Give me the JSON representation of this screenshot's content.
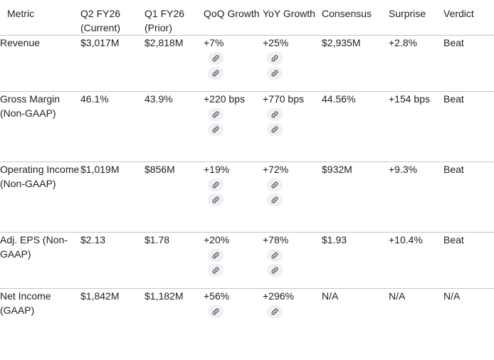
{
  "columns": [
    {
      "key": "metric",
      "label": "Metric"
    },
    {
      "key": "current",
      "label": "Q2 FY26 (Current)"
    },
    {
      "key": "prior",
      "label": "Q1 FY26 (Prior)"
    },
    {
      "key": "qoq",
      "label": "QoQ Growth"
    },
    {
      "key": "yoy",
      "label": "YoY Growth"
    },
    {
      "key": "consensus",
      "label": "Consensus"
    },
    {
      "key": "surprise",
      "label": "Surprise"
    },
    {
      "key": "verdict",
      "label": "Verdict"
    }
  ],
  "rows": [
    {
      "metric": "Revenue",
      "current": "$3,017M",
      "prior": "$2,818M",
      "qoq": "+7%",
      "yoy": "+25%",
      "consensus": "$2,935M",
      "surprise": "+2.8%",
      "verdict": "Beat",
      "qoq_links": 2,
      "yoy_links": 2
    },
    {
      "metric": "Gross Margin (Non-GAAP)",
      "current": "46.1%",
      "prior": "43.9%",
      "qoq": "+220 bps",
      "yoy": "+770 bps",
      "consensus": "44.56%",
      "surprise": "+154 bps",
      "verdict": "Beat",
      "qoq_links": 2,
      "yoy_links": 2
    },
    {
      "metric": "Operating Income (Non-GAAP)",
      "current": "$1,019M",
      "prior": "$856M",
      "qoq": "+19%",
      "yoy": "+72%",
      "consensus": "$932M",
      "surprise": "+9.3%",
      "verdict": "Beat",
      "qoq_links": 2,
      "yoy_links": 2
    },
    {
      "metric": "Adj. EPS (Non-GAAP)",
      "current": "$2.13",
      "prior": "$1.78",
      "qoq": "+20%",
      "yoy": "+78%",
      "consensus": "$1.93",
      "surprise": "+10.4%",
      "verdict": "Beat",
      "qoq_links": 2,
      "yoy_links": 2
    },
    {
      "metric": "Net Income (GAAP)",
      "current": "$1,842M",
      "prior": "$1,182M",
      "qoq": "+56%",
      "yoy": "+296%",
      "consensus": "N/A",
      "surprise": "N/A",
      "verdict": "N/A",
      "qoq_links": 1,
      "yoy_links": 1
    }
  ],
  "icons": {
    "source_chip": "link-icon"
  },
  "colors": {
    "text": "#1f1f1f",
    "chip_bg": "#eef0f3",
    "chip_icon": "#444746",
    "divider": "#c4c7c5"
  }
}
